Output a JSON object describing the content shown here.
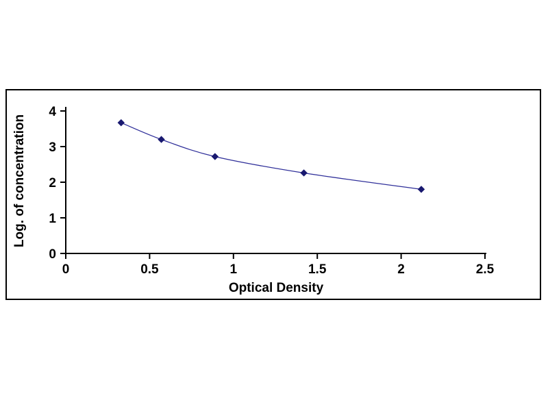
{
  "page": {
    "background": "#ffffff"
  },
  "chart_data": {
    "type": "line",
    "title": "",
    "xlabel": "Optical Density",
    "ylabel": "Log. of concentration",
    "x": [
      0.33,
      0.57,
      0.89,
      1.42,
      2.12
    ],
    "y": [
      3.67,
      3.2,
      2.72,
      2.26,
      1.8
    ],
    "xlim": [
      0,
      2.5
    ],
    "ylim": [
      0,
      4
    ],
    "xticks": [
      0,
      0.5,
      1,
      1.5,
      2,
      2.5
    ],
    "xtick_labels": [
      "0",
      "0.5",
      "1",
      "1.5",
      "2",
      "2.5"
    ],
    "yticks": [
      0,
      1,
      2,
      3,
      4
    ],
    "ytick_labels": [
      "0",
      "1",
      "2",
      "3",
      "4"
    ],
    "grid": false,
    "legend": null,
    "marker": "diamond",
    "marker_size": 4.5,
    "line_color": "#2e2e99",
    "marker_color": "#191970",
    "axis_color": "#000000",
    "frame_color": "#000000"
  }
}
